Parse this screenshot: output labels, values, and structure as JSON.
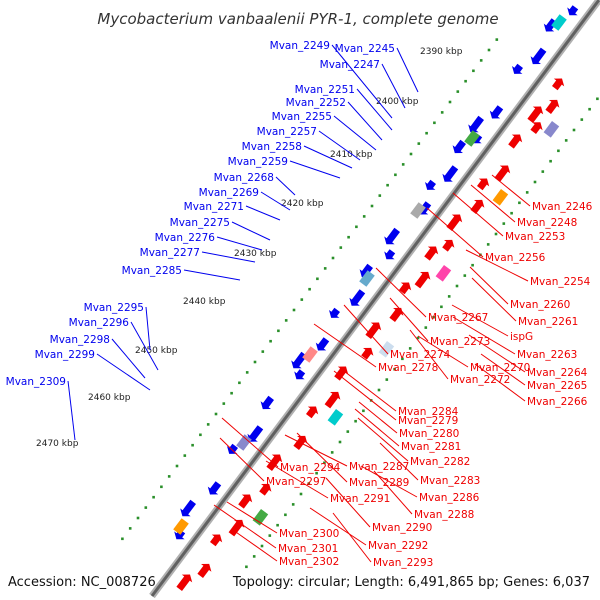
{
  "title": "Mycobacterium vanbaalenii PYR-1, complete genome",
  "footer": {
    "accession": "Accession: NC_008726",
    "topology": "Topology: circular; Length: 6,491,865 bp; Genes: 6,037"
  },
  "colors": {
    "forward": "#0000ee",
    "reverse": "#ee0000",
    "backbone": "#888888"
  },
  "kbp_ticks": [
    "2390 kbp",
    "2400 kbp",
    "2410 kbp",
    "2420 kbp",
    "2430 kbp",
    "2440 kbp",
    "2450 kbp",
    "2460 kbp",
    "2470 kbp"
  ],
  "forward_genes": [
    "Mvan_2245",
    "Mvan_2247",
    "Mvan_2249",
    "Mvan_2251",
    "Mvan_2252",
    "Mvan_2255",
    "Mvan_2257",
    "Mvan_2258",
    "Mvan_2259",
    "Mvan_2268",
    "Mvan_2269",
    "Mvan_2271",
    "Mvan_2275",
    "Mvan_2276",
    "Mvan_2277",
    "Mvan_2285",
    "Mvan_2295",
    "Mvan_2296",
    "Mvan_2298",
    "Mvan_2299",
    "Mvan_2309"
  ],
  "reverse_genes": [
    "Mvan_2246",
    "Mvan_2248",
    "Mvan_2253",
    "Mvan_2256",
    "Mvan_2254",
    "Mvan_2260",
    "Mvan_2261",
    "Mvan_2267",
    "ispG",
    "Mvan_2263",
    "Mvan_2273",
    "Mvan_2274",
    "Mvan_2270",
    "Mvan_2264",
    "Mvan_2278",
    "Mvan_2272",
    "Mvan_2265",
    "Mvan_2266",
    "Mvan_2284",
    "Mvan_2279",
    "Mvan_2280",
    "Mvan_2281",
    "Mvan_2282",
    "Mvan_2294",
    "Mvan_2287",
    "Mvan_2283",
    "Mvan_2297",
    "Mvan_2289",
    "Mvan_2286",
    "Mvan_2291",
    "Mvan_2288",
    "Mvan_2290",
    "Mvan_2300",
    "Mvan_2292",
    "Mvan_2301",
    "Mvan_2293",
    "Mvan_2302"
  ]
}
